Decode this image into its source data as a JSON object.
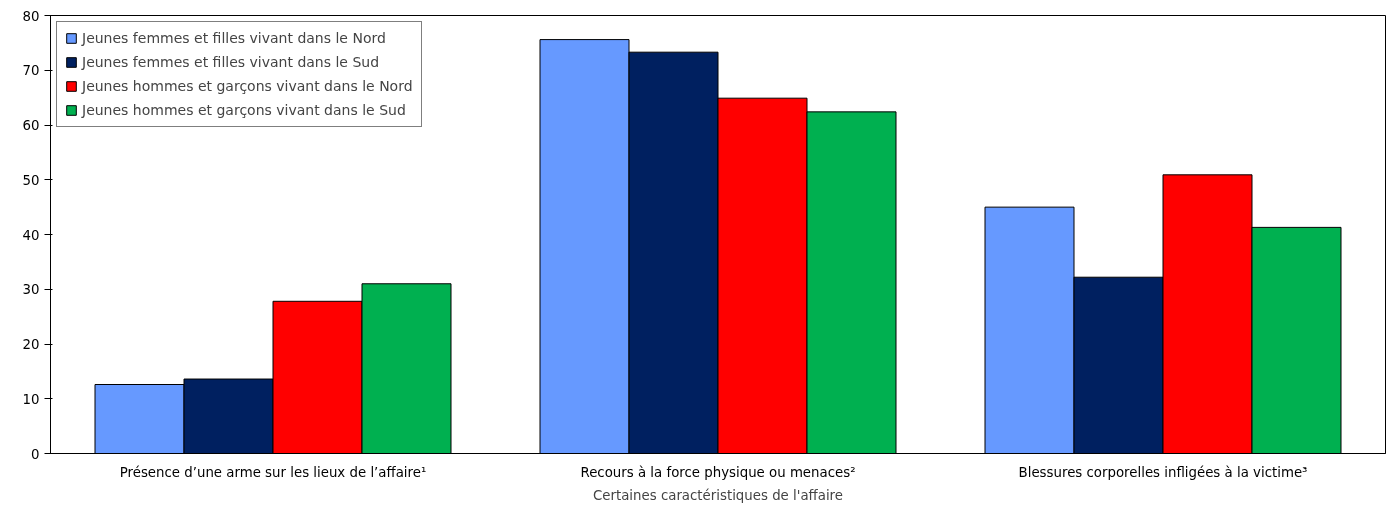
{
  "chart_data": {
    "type": "bar",
    "xlabel": "Certaines caractéristiques de l'affaire",
    "categories": [
      "Présence d’une arme sur les lieux de l’affaire¹",
      "Recours à la force physique ou menaces²",
      "Blessures corporelles infligées à la victime³"
    ],
    "series": [
      {
        "name": "Jeunes femmes et filles vivant dans le Nord",
        "color": "#6699ff",
        "values": [
          12.6,
          75.6,
          45.0
        ]
      },
      {
        "name": "Jeunes femmes et filles vivant dans le Sud",
        "color": "#002060",
        "values": [
          13.6,
          73.3,
          32.2
        ]
      },
      {
        "name": "Jeunes hommes et garçons vivant dans le Nord",
        "color": "#ff0000",
        "values": [
          27.8,
          64.9,
          50.9
        ]
      },
      {
        "name": "Jeunes hommes et garçons vivant dans le Sud",
        "color": "#00b050",
        "values": [
          31.0,
          62.4,
          41.3
        ]
      }
    ],
    "ylim": [
      0,
      80
    ],
    "yticks": [
      0,
      10,
      20,
      30,
      40,
      50,
      60,
      70,
      80
    ],
    "grid": false,
    "legend": "top left"
  }
}
